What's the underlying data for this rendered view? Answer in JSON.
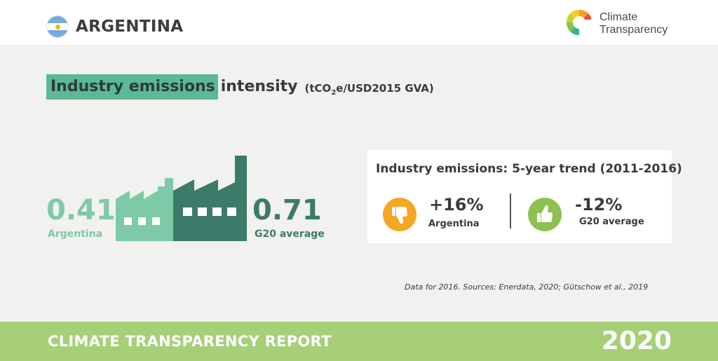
{
  "header": {
    "country": "ARGENTINA",
    "logo": {
      "line1": "Climate",
      "line2": "Transparency"
    }
  },
  "title": {
    "highlight": "Industry emissions",
    "rest": "intensity",
    "unit_prefix": "(tCO",
    "unit_sub": "2",
    "unit_suffix": "e/USD2015 GVA)"
  },
  "comparison": {
    "argentina": {
      "value": "0.41",
      "label": "Argentina"
    },
    "g20": {
      "value": "0.71",
      "label": "G20 average"
    }
  },
  "trend": {
    "title": "Industry emissions: 5-year trend (2011-2016)",
    "argentina": {
      "value": "+16%",
      "label": "Argentina",
      "icon": "thumbs-down-icon"
    },
    "g20": {
      "value": "-12%",
      "label": "G20 average",
      "icon": "thumbs-up-icon"
    }
  },
  "source": "Data for 2016. Sources: Enerdata, 2020; Gütschow et al., 2019",
  "footer": {
    "title": "CLIMATE TRANSPARENCY REPORT",
    "year": "2020"
  },
  "colors": {
    "light_green": "#7ccaa6",
    "dark_green": "#3d7a6a",
    "highlight": "#5bb996",
    "orange": "#f5a623",
    "lime": "#8cc152",
    "footer": "#a6cf78"
  }
}
